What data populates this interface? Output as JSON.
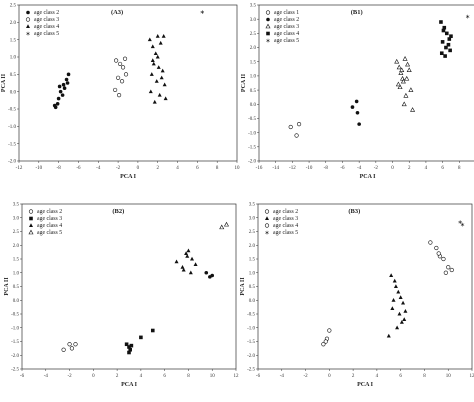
{
  "chart_data": [
    {
      "id": "A3",
      "type": "scatter",
      "title": "(A3)",
      "xlabel": "PCA I",
      "ylabel": "PCA II",
      "xlim": [
        -12,
        10
      ],
      "ylim": [
        -2.0,
        2.5
      ],
      "xticks": [
        "-12",
        "-10",
        "-8",
        "-6",
        "-4",
        "-2",
        "0",
        "2",
        "4",
        "6",
        "8",
        "10"
      ],
      "yticks": [
        "-2.0",
        "-1.5",
        "-1.0",
        "-0.5",
        "0.0",
        "0.5",
        "1.0",
        "1.5",
        "2.0",
        "2.5"
      ],
      "legend_position": "top-left",
      "series": [
        {
          "name": "age class 2",
          "marker": "filled-circle",
          "x": [
            -8.3,
            -8.0,
            -7.8,
            -7.5,
            -7.2,
            -7.0,
            -7.6,
            -8.1,
            -7.4,
            -7.9,
            -7.1,
            -8.4
          ],
          "y": [
            -0.45,
            -0.2,
            0.0,
            0.2,
            0.35,
            0.5,
            -0.1,
            -0.35,
            0.1,
            0.15,
            0.25,
            -0.4
          ]
        },
        {
          "name": "age class 3",
          "marker": "open-circle",
          "x": [
            -2.2,
            -1.8,
            -1.5,
            -1.2,
            -2.0,
            -1.6,
            -2.3,
            -1.9,
            -1.3
          ],
          "y": [
            0.9,
            0.8,
            0.7,
            0.5,
            0.4,
            0.3,
            0.05,
            -0.1,
            0.95
          ]
        },
        {
          "name": "age class 4",
          "marker": "filled-triangle",
          "x": [
            1.2,
            1.5,
            1.8,
            2.0,
            2.3,
            2.6,
            1.6,
            2.1,
            1.4,
            2.5,
            1.9,
            2.7,
            1.3,
            2.2,
            1.7,
            2.8,
            1.5,
            2.0,
            2.4
          ],
          "y": [
            1.5,
            1.3,
            1.1,
            1.6,
            1.4,
            1.6,
            0.8,
            0.7,
            0.5,
            0.6,
            0.3,
            0.2,
            0.0,
            -0.1,
            -0.3,
            -0.2,
            0.9,
            1.0,
            0.4
          ]
        },
        {
          "name": "age class 5",
          "marker": "star",
          "x": [
            6.5
          ],
          "y": [
            2.3
          ]
        }
      ]
    },
    {
      "id": "B1",
      "type": "scatter",
      "title": "(B1)",
      "xlabel": "PCA I",
      "ylabel": "PCA II",
      "xlim": [
        -16,
        10
      ],
      "ylim": [
        -2.0,
        3.5
      ],
      "xticks": [
        "-16",
        "-14",
        "-12",
        "-10",
        "-8",
        "-6",
        "-4",
        "-2",
        "0",
        "2",
        "4",
        "6",
        "8",
        "10"
      ],
      "yticks": [
        "-2.0",
        "-1.5",
        "-1.0",
        "-0.5",
        "0.0",
        "0.5",
        "1.0",
        "1.5",
        "2.0",
        "2.5",
        "3.0",
        "3.5"
      ],
      "legend_position": "top-left",
      "series": [
        {
          "name": "age class 1",
          "marker": "open-circle",
          "x": [
            -12.2,
            -11.5,
            -11.2
          ],
          "y": [
            -0.8,
            -1.1,
            -0.7
          ]
        },
        {
          "name": "age class 2",
          "marker": "filled-circle",
          "x": [
            -4.8,
            -4.3,
            -4.2,
            -4.0
          ],
          "y": [
            -0.1,
            0.1,
            -0.3,
            -0.7
          ]
        },
        {
          "name": "age class 3",
          "marker": "open-triangle",
          "x": [
            0.5,
            0.8,
            1.0,
            1.2,
            1.5,
            1.8,
            2.0,
            1.3,
            0.9,
            1.7,
            2.2,
            1.1,
            1.6,
            0.7,
            1.4,
            2.4
          ],
          "y": [
            1.5,
            1.3,
            1.1,
            0.9,
            1.6,
            1.4,
            1.2,
            0.8,
            0.6,
            0.9,
            0.5,
            1.2,
            0.3,
            0.7,
            0.0,
            -0.2
          ]
        },
        {
          "name": "age class 4",
          "marker": "filled-square",
          "x": [
            5.8,
            6.2,
            6.5,
            6.8,
            6.0,
            6.4,
            5.9,
            6.7,
            6.3,
            7.0,
            6.1,
            6.9
          ],
          "y": [
            2.9,
            2.7,
            2.5,
            2.3,
            2.2,
            2.0,
            1.8,
            2.1,
            1.7,
            2.4,
            2.6,
            1.9
          ]
        },
        {
          "name": "age class 5",
          "marker": "star",
          "x": [
            9.0
          ],
          "y": [
            3.1
          ]
        }
      ]
    },
    {
      "id": "B2",
      "type": "scatter",
      "title": "(B2)",
      "xlabel": "PCA I",
      "ylabel": "PCA II",
      "xlim": [
        -6,
        12
      ],
      "ylim": [
        -2.5,
        3.5
      ],
      "xticks": [
        "-6",
        "-4",
        "-2",
        "0",
        "2",
        "4",
        "6",
        "8",
        "10",
        "12"
      ],
      "yticks": [
        "-2.5",
        "-2.0",
        "-1.5",
        "-1.0",
        "-0.5",
        "0.0",
        "0.5",
        "1.0",
        "1.5",
        "2.0",
        "2.5",
        "3.0",
        "3.5"
      ],
      "legend_position": "top-left",
      "series": [
        {
          "name": "age class 2",
          "marker": "open-circle",
          "x": [
            -2.5,
            -2.0,
            -1.8,
            -1.5
          ],
          "y": [
            -1.8,
            -1.6,
            -1.75,
            -1.6
          ]
        },
        {
          "name": "age class 3",
          "marker": "filled-square",
          "x": [
            2.8,
            3.0,
            3.1,
            3.2,
            3.0,
            4.0,
            5.0
          ],
          "y": [
            -1.6,
            -1.7,
            -1.8,
            -1.65,
            -1.9,
            -1.35,
            -1.1
          ]
        },
        {
          "name": "age class 4",
          "marker": "filled-triangle",
          "x": [
            7.0,
            7.5,
            7.8,
            8.0,
            8.3,
            7.6,
            8.6,
            7.9,
            8.2
          ],
          "y": [
            1.4,
            1.2,
            1.7,
            1.8,
            1.5,
            1.1,
            1.3,
            1.6,
            1.0
          ]
        },
        {
          "name": "",
          "marker": "filled-circle",
          "x": [
            9.5,
            9.8,
            10.0
          ],
          "y": [
            1.0,
            0.85,
            0.9
          ]
        },
        {
          "name": "age class 5",
          "marker": "open-triangle",
          "x": [
            10.8,
            11.2
          ],
          "y": [
            2.65,
            2.75
          ]
        }
      ]
    },
    {
      "id": "B3",
      "type": "scatter",
      "title": "(B3)",
      "xlabel": "PCA I",
      "ylabel": "PCA II",
      "xlim": [
        -6,
        12
      ],
      "ylim": [
        -2.5,
        3.5
      ],
      "xticks": [
        "-6",
        "-4",
        "-2",
        "0",
        "2",
        "4",
        "6",
        "8",
        "10",
        "12"
      ],
      "yticks": [
        "-2.5",
        "-2.0",
        "-1.5",
        "-1.0",
        "-0.5",
        "0.0",
        "0.5",
        "1.0",
        "1.5",
        "2.0",
        "2.5",
        "3.0",
        "3.5"
      ],
      "legend_position": "top-left",
      "series": [
        {
          "name": "age class 2",
          "marker": "open-circle",
          "x": [
            -0.2,
            -0.5,
            0.0,
            -0.3
          ],
          "y": [
            -1.4,
            -1.6,
            -1.1,
            -1.5
          ]
        },
        {
          "name": "age class 3",
          "marker": "filled-triangle",
          "x": [
            5.2,
            5.5,
            5.6,
            5.8,
            6.0,
            6.2,
            5.3,
            5.9,
            6.3,
            5.7,
            6.1,
            5.4,
            6.4,
            5.0
          ],
          "y": [
            0.9,
            0.7,
            0.5,
            0.3,
            0.1,
            -0.1,
            -0.3,
            -0.5,
            -0.7,
            -1.0,
            -0.8,
            0.0,
            -0.4,
            -1.3
          ]
        },
        {
          "name": "age class 4",
          "marker": "open-circle",
          "x": [
            8.5,
            9.0,
            9.3,
            9.6,
            10.0,
            9.8,
            10.3,
            9.2
          ],
          "y": [
            2.1,
            1.9,
            1.6,
            1.5,
            1.2,
            1.0,
            1.1,
            1.7
          ]
        },
        {
          "name": "age class 5",
          "marker": "star",
          "x": [
            11.0,
            11.2
          ],
          "y": [
            2.85,
            2.75
          ]
        }
      ]
    }
  ]
}
